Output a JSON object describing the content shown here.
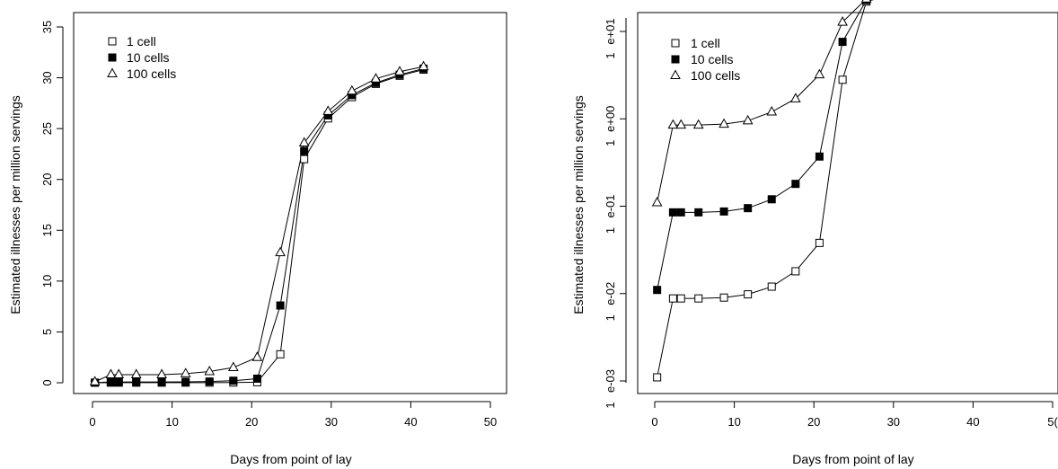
{
  "chart_data": [
    {
      "type": "line",
      "xlabel": "Days from point of lay",
      "ylabel": "Estimated illnesses per million servings",
      "xlim": [
        0,
        50
      ],
      "ylim": [
        0,
        35
      ],
      "x_ticks": [
        "0",
        "10",
        "20",
        "30",
        "40",
        "50"
      ],
      "y_ticks": [
        "0",
        "5",
        "10",
        "15",
        "20",
        "25",
        "30",
        "35"
      ],
      "legend_position": "top-left",
      "grid": false,
      "x": [
        0.3,
        2.3,
        3.3,
        5.5,
        8.7,
        11.7,
        14.7,
        17.7,
        20.7,
        23.6,
        26.6,
        29.6,
        32.6,
        35.6,
        38.6,
        41.6
      ],
      "series": [
        {
          "name": "1 cell",
          "marker": "open-square",
          "values": [
            0.001,
            0.01,
            0.01,
            0.01,
            0.01,
            0.011,
            0.013,
            0.02,
            0.05,
            2.8,
            22.0,
            26.0,
            28.1,
            29.4,
            30.2,
            30.8
          ]
        },
        {
          "name": "10 cells",
          "marker": "filled-square",
          "values": [
            0.012,
            0.08,
            0.08,
            0.08,
            0.08,
            0.09,
            0.12,
            0.2,
            0.4,
            7.6,
            22.8,
            26.3,
            28.3,
            29.5,
            30.3,
            30.9
          ]
        },
        {
          "name": "100 cells",
          "marker": "open-triangle",
          "values": [
            0.1,
            0.8,
            0.8,
            0.8,
            0.8,
            0.9,
            1.1,
            1.5,
            2.5,
            12.8,
            23.6,
            26.7,
            28.7,
            29.9,
            30.6,
            31.1
          ]
        }
      ]
    },
    {
      "type": "line",
      "xlabel": "Days from point of lay",
      "ylabel": "Estimated illnesses per million servings",
      "xlim": [
        0,
        50
      ],
      "log_scale_y": true,
      "ylim": [
        0.001,
        50
      ],
      "x_ticks": [
        "0",
        "10",
        "20",
        "30",
        "40",
        "5("
      ],
      "y_ticks": [
        {
          "top": "e-03",
          "bottom": "1",
          "value": 0.001
        },
        {
          "top": "e-02",
          "bottom": "1",
          "value": 0.01
        },
        {
          "top": "e-01",
          "bottom": "1",
          "value": 0.1
        },
        {
          "top": "e+00",
          "bottom": "1",
          "value": 1
        },
        {
          "top": "e+01",
          "bottom": "1",
          "value": 10
        }
      ],
      "legend_position": "top-left",
      "grid": false,
      "x": [
        0.3,
        2.3,
        3.3,
        5.5,
        8.7,
        11.7,
        14.7,
        17.7,
        20.7,
        23.6,
        26.6,
        29.6,
        32.6,
        35.6,
        38.6,
        41.6
      ],
      "series": [
        {
          "name": "1 cell",
          "marker": "open-square",
          "values": [
            0.0011,
            0.0088,
            0.0088,
            0.0088,
            0.009,
            0.0098,
            0.012,
            0.018,
            0.038,
            2.8,
            22.0,
            26.0,
            28.1,
            29.4,
            30.2,
            30.8
          ]
        },
        {
          "name": "10 cells",
          "marker": "filled-square",
          "values": [
            0.011,
            0.085,
            0.085,
            0.085,
            0.087,
            0.095,
            0.12,
            0.18,
            0.37,
            7.6,
            22.8,
            26.3,
            28.3,
            29.5,
            30.3,
            30.9
          ]
        },
        {
          "name": "100 cells",
          "marker": "open-triangle",
          "values": [
            0.11,
            0.85,
            0.85,
            0.85,
            0.87,
            0.95,
            1.2,
            1.7,
            3.2,
            12.8,
            23.6,
            26.7,
            28.7,
            29.9,
            30.6,
            31.1
          ]
        }
      ]
    }
  ]
}
